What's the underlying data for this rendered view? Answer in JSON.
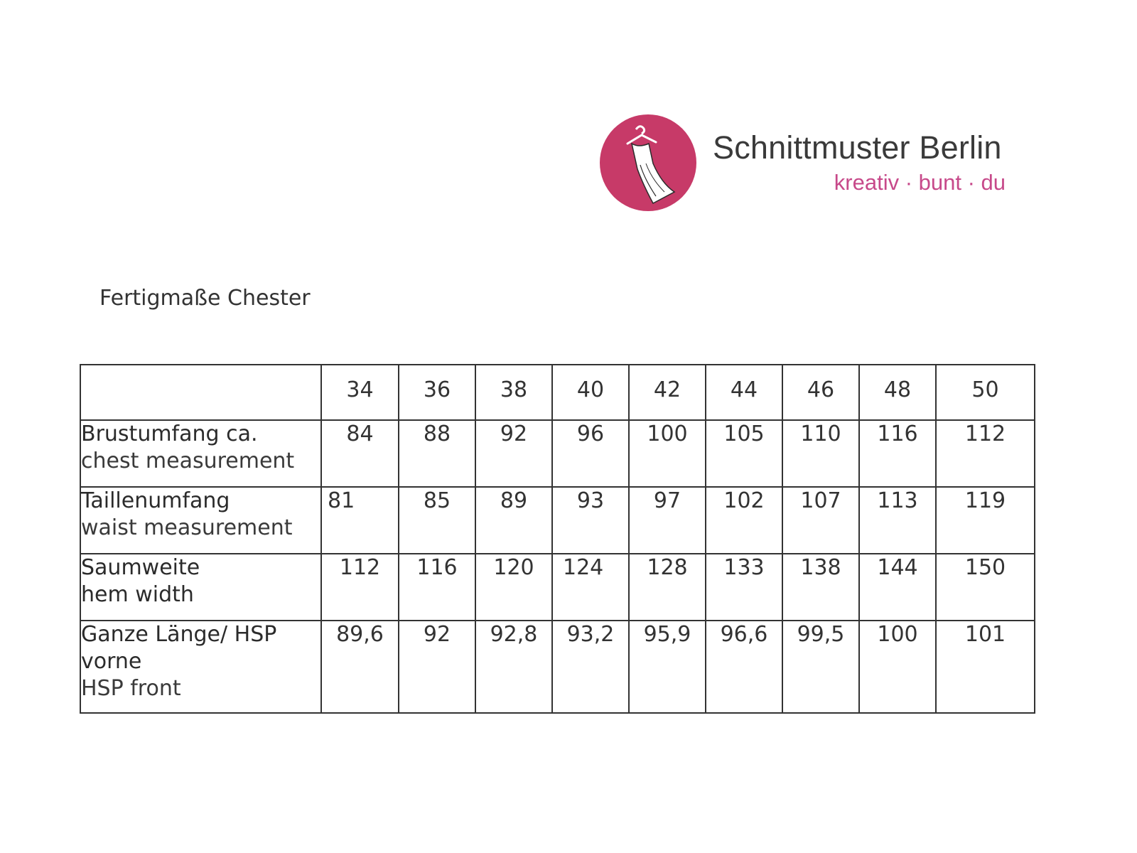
{
  "brand": {
    "name": "Schnittmuster Berlin",
    "tagline": "kreativ · bunt · du",
    "logo_icon": "dress-hanger-icon",
    "logo_color": "#c73a68"
  },
  "document": {
    "title": "Fertigmaße Chester"
  },
  "size_table": {
    "sizes": [
      "34",
      "36",
      "38",
      "40",
      "42",
      "44",
      "46",
      "48",
      "50"
    ],
    "rows": [
      {
        "label_de": "Brustumfang ca.",
        "label_en": "chest measurement",
        "values": [
          "84",
          "88",
          "92",
          "96",
          "100",
          "105",
          "110",
          "116",
          "112"
        ]
      },
      {
        "label_de": "Taillenumfang",
        "label_en": "waist measurement",
        "values": [
          "81",
          "85",
          "89",
          "93",
          "97",
          "102",
          "107",
          "113",
          "119"
        ]
      },
      {
        "label_de": "Saumweite",
        "label_en": "hem width",
        "values": [
          "112",
          "116",
          "120",
          "124",
          "128",
          "133",
          "138",
          "144",
          "150"
        ]
      },
      {
        "label_de": "Ganze Länge/ HSP vorne",
        "label_en": "HSP front",
        "values": [
          "89,6",
          "92",
          "92,8",
          "93,2",
          "95,9",
          "96,6",
          "99,5",
          "100",
          "101"
        ]
      }
    ]
  }
}
